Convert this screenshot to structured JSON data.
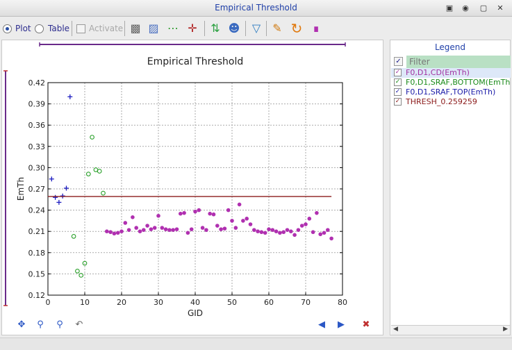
{
  "window": {
    "title": "Empirical Threshold"
  },
  "toolbar": {
    "plot_label": "Plot",
    "table_label": "Table",
    "activate_label": "Activate",
    "selected_view": "plot"
  },
  "legend": {
    "header": "Legend",
    "filter_placeholder": "Filter",
    "items": [
      {
        "label": "F0,D1,CD(EmTh)",
        "color": "#a030a0",
        "checked": true
      },
      {
        "label": "F0,D1,SRAF,BOTTOM(EmTh)",
        "color": "#1a8a1a",
        "checked": true
      },
      {
        "label": "F0,D1,SRAF,TOP(EmTh)",
        "color": "#1a1aa8",
        "checked": true
      },
      {
        "label": "THRESH_0.259259",
        "color": "#8b1a1a",
        "checked": true
      }
    ]
  },
  "chart_data": {
    "type": "scatter",
    "title": "Empirical Threshold",
    "xlabel": "GID",
    "ylabel": "EmTh",
    "xlim": [
      0,
      80
    ],
    "ylim": [
      0.12,
      0.42
    ],
    "xticks": [
      "0",
      "10",
      "20",
      "30",
      "40",
      "50",
      "60",
      "70",
      "80"
    ],
    "yticks": [
      "0.12",
      "0.15",
      "0.18",
      "0.21",
      "0.24",
      "0.27",
      "0.30",
      "0.33",
      "0.36",
      "0.39",
      "0.42"
    ],
    "grid": true,
    "series": [
      {
        "name": "F0,D1,CD(EmTh)",
        "marker": "dot",
        "color": "#b030b0",
        "x": [
          16,
          17,
          18,
          19,
          20,
          21,
          22,
          23,
          24,
          25,
          26,
          27,
          28,
          29,
          30,
          31,
          32,
          33,
          34,
          35,
          36,
          37,
          38,
          39,
          40,
          41,
          42,
          43,
          44,
          45,
          46,
          47,
          48,
          49,
          50,
          51,
          52,
          53,
          54,
          55,
          56,
          57,
          58,
          59,
          60,
          61,
          62,
          63,
          64,
          65,
          66,
          67,
          68,
          69,
          70,
          71,
          72,
          73,
          74,
          75,
          76,
          77
        ],
        "y": [
          0.21,
          0.209,
          0.207,
          0.208,
          0.21,
          0.222,
          0.212,
          0.23,
          0.215,
          0.21,
          0.212,
          0.218,
          0.213,
          0.215,
          0.232,
          0.215,
          0.213,
          0.212,
          0.212,
          0.213,
          0.235,
          0.236,
          0.208,
          0.213,
          0.238,
          0.24,
          0.215,
          0.212,
          0.235,
          0.234,
          0.218,
          0.213,
          0.214,
          0.24,
          0.225,
          0.215,
          0.248,
          0.225,
          0.228,
          0.22,
          0.212,
          0.21,
          0.209,
          0.208,
          0.213,
          0.212,
          0.21,
          0.208,
          0.209,
          0.212,
          0.21,
          0.205,
          0.212,
          0.218,
          0.22,
          0.228,
          0.209,
          0.236,
          0.206,
          0.208,
          0.212,
          0.2
        ]
      },
      {
        "name": "F0,D1,SRAF,BOTTOM(EmTh)",
        "marker": "circle",
        "color": "#2aa02a",
        "x": [
          7,
          8,
          9,
          10,
          11,
          12,
          13,
          14,
          15
        ],
        "y": [
          0.203,
          0.154,
          0.148,
          0.165,
          0.291,
          0.343,
          0.297,
          0.295,
          0.264
        ]
      },
      {
        "name": "F0,D1,SRAF,TOP(EmTh)",
        "marker": "plus",
        "color": "#1a1ac0",
        "x": [
          1,
          2,
          3,
          4,
          5,
          6
        ],
        "y": [
          0.284,
          0.258,
          0.251,
          0.26,
          0.271,
          0.4
        ]
      },
      {
        "name": "THRESH_0.259259",
        "marker": "line",
        "color": "#8b1a1a",
        "x": [
          0,
          77
        ],
        "y": [
          0.259259,
          0.259259
        ]
      }
    ]
  }
}
